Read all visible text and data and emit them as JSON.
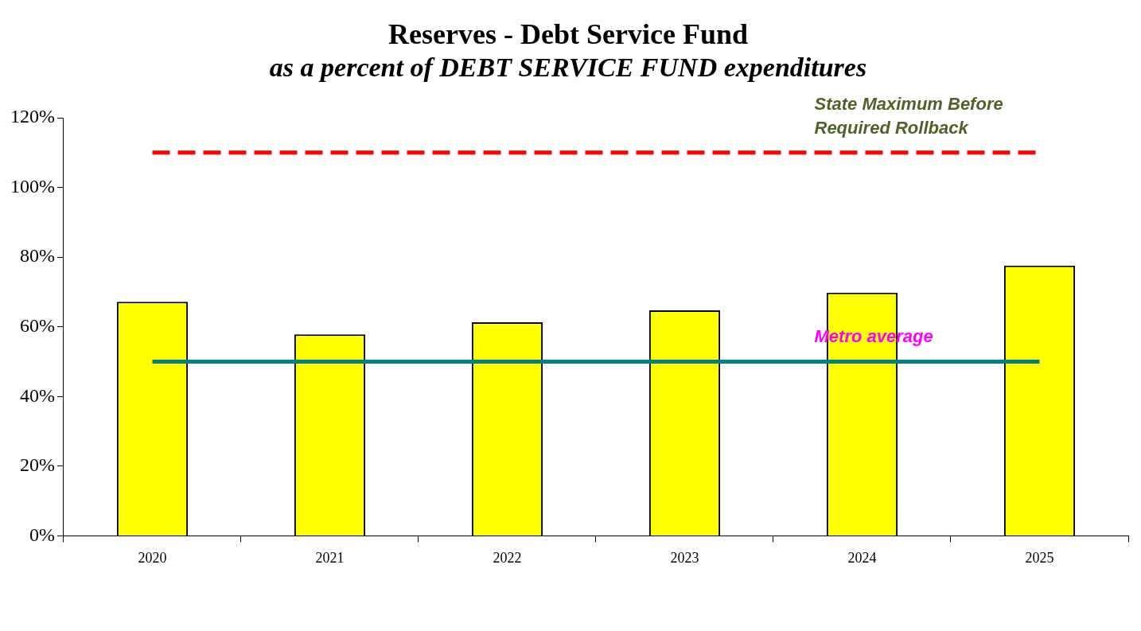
{
  "chart_data": {
    "type": "bar",
    "title": "Reserves - Debt Service Fund",
    "subtitle": "as a percent of DEBT SERVICE FUND expenditures",
    "categories": [
      "2020",
      "2021",
      "2022",
      "2023",
      "2024",
      "2025"
    ],
    "values": [
      67.2,
      57.8,
      61.3,
      64.7,
      69.8,
      77.6
    ],
    "color": "#ffff00",
    "ylim": [
      0,
      120
    ],
    "yticks": [
      {
        "value": 0,
        "label": "0%"
      },
      {
        "value": 20,
        "label": "20%"
      },
      {
        "value": 40,
        "label": "40%"
      },
      {
        "value": 60,
        "label": "60%"
      },
      {
        "value": 80,
        "label": "80%"
      },
      {
        "value": 100,
        "label": "100%"
      },
      {
        "value": 120,
        "label": "120%"
      }
    ],
    "ref_lines": [
      {
        "axis": "y",
        "value": 110,
        "label": "State Maximum Before Required Rollback",
        "color": "#ff0000",
        "line_style": "dashed"
      },
      {
        "axis": "y",
        "value": 50,
        "label": "Metro average",
        "color": "#008080",
        "line_style": "solid"
      }
    ],
    "grid": false,
    "legend": false
  }
}
